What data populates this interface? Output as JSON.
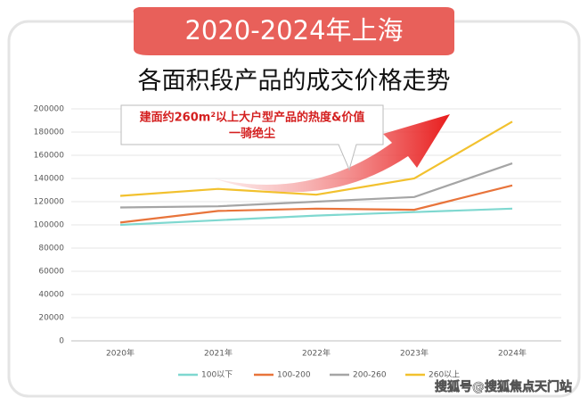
{
  "chart_data": {
    "type": "line",
    "title": "2020-2024年上海",
    "subtitle": "各面积段产品的成交价格走势",
    "annotations": [
      "建面约260m²以上大户型产品的热度&价值",
      "一骑绝尘"
    ],
    "watermark": "搜狐号@搜狐焦点天门站",
    "categories": [
      "2020年",
      "2021年",
      "2022年",
      "2023年",
      "2024年"
    ],
    "series": [
      {
        "name": "100以下",
        "color": "#7fd8d0",
        "values": [
          100000,
          104000,
          108000,
          111000,
          114000
        ]
      },
      {
        "name": "100-200",
        "color": "#e8743b",
        "values": [
          102000,
          112000,
          114000,
          113000,
          134000
        ]
      },
      {
        "name": "200-260",
        "color": "#a5a5a5",
        "values": [
          115000,
          116000,
          120000,
          124000,
          153000
        ]
      },
      {
        "name": "260以上",
        "color": "#f2c12e",
        "values": [
          125000,
          131000,
          126000,
          140000,
          189000
        ]
      }
    ],
    "ylim": [
      0,
      200000
    ],
    "yticks": [
      0,
      20000,
      40000,
      60000,
      80000,
      100000,
      120000,
      140000,
      160000,
      180000,
      200000
    ],
    "grid": true,
    "legend": "bottom"
  }
}
